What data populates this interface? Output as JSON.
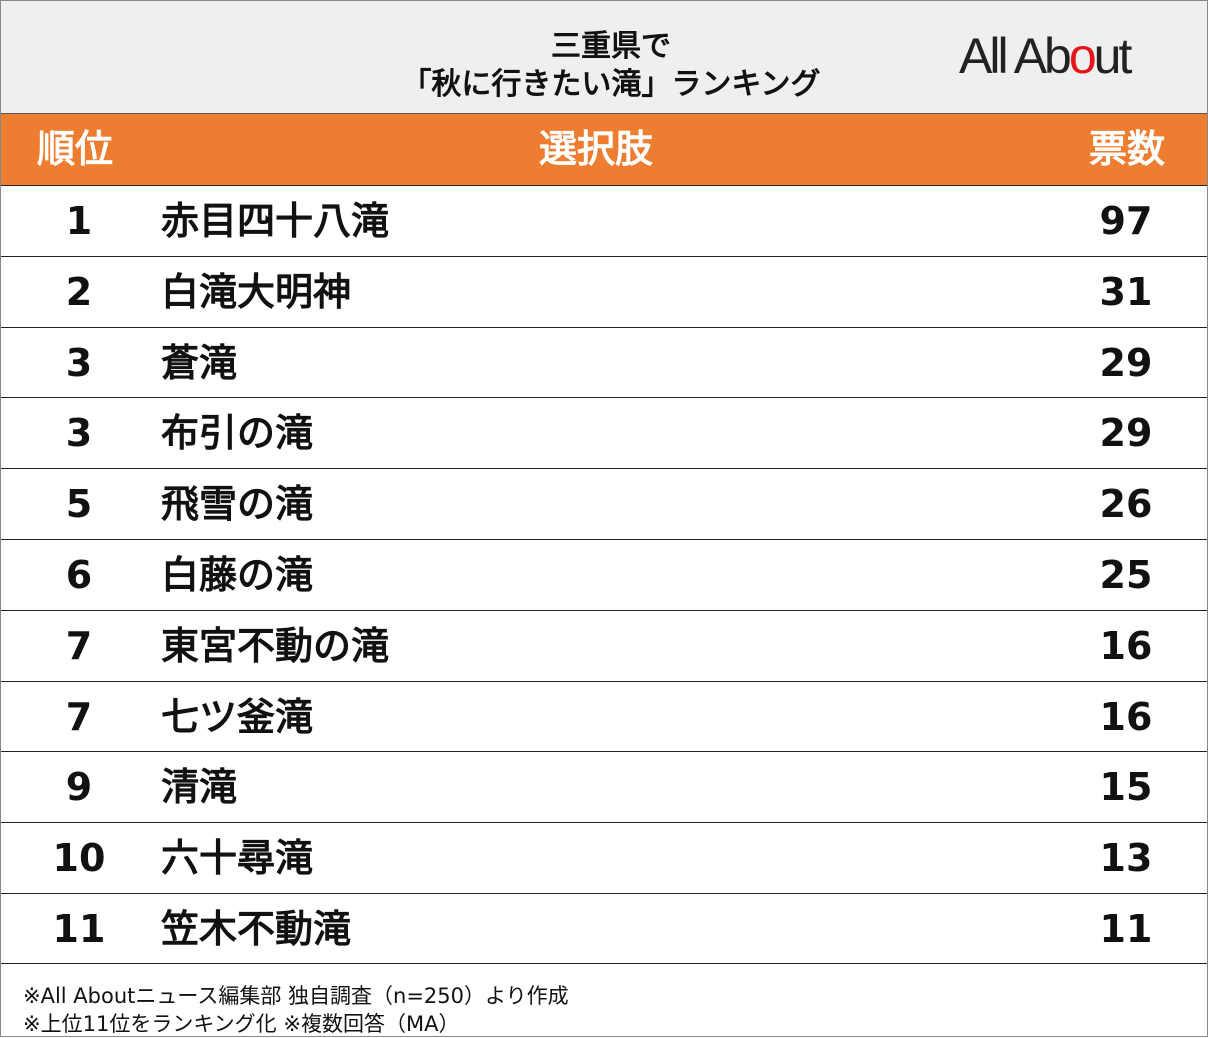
{
  "header": {
    "title_lines": [
      "三重県で",
      "「秋に行きたい滝」ランキング"
    ],
    "logo": "All About"
  },
  "table": {
    "columns": [
      "順位",
      "選択肢",
      "票数"
    ],
    "rows": [
      [
        "1",
        "赤目四十八滝",
        "97"
      ],
      [
        "2",
        "白滝大明神",
        "31"
      ],
      [
        "3",
        "蒼滝",
        "29"
      ],
      [
        "3",
        "布引の滝",
        "29"
      ],
      [
        "5",
        "飛雪の滝",
        "26"
      ],
      [
        "6",
        "白藤の滝",
        "25"
      ],
      [
        "7",
        "東宮不動の滝",
        "16"
      ],
      [
        "7",
        "七ツ釜滝",
        "16"
      ],
      [
        "9",
        "清滝",
        "15"
      ],
      [
        "10",
        "六十尋滝",
        "13"
      ],
      [
        "11",
        "笠木不動滝",
        "11"
      ]
    ]
  },
  "footnotes": [
    "※All Aboutニュース編集部 独自調査（n=250）より作成",
    "※上位11位をランキング化 ※複数回答（MA）"
  ]
}
